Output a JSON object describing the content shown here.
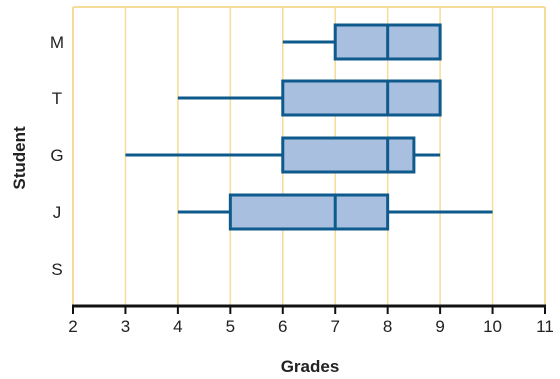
{
  "chart_data": {
    "type": "box",
    "orientation": "horizontal",
    "xlabel": "Grades",
    "ylabel": "Student",
    "xlim": [
      2,
      11
    ],
    "xticks": [
      2,
      3,
      4,
      5,
      6,
      7,
      8,
      9,
      10,
      11
    ],
    "grid": "vertical",
    "categories": [
      "M",
      "T",
      "G",
      "J",
      "S"
    ],
    "boxes": [
      {
        "category": "M",
        "min": 6,
        "q1": 7,
        "median": 8,
        "q3": 9,
        "max": 9
      },
      {
        "category": "T",
        "min": 4,
        "q1": 6,
        "median": 8,
        "q3": 9,
        "max": 9
      },
      {
        "category": "G",
        "min": 3,
        "q1": 6,
        "median": 8,
        "q3": 8.5,
        "max": 9
      },
      {
        "category": "J",
        "min": 4,
        "q1": 5,
        "median": 7,
        "q3": 8,
        "max": 10
      },
      {
        "category": "S"
      }
    ],
    "colors": {
      "box_fill": "#a9bfdf",
      "box_stroke": "#0f5a8c",
      "gridline": "#f5dc98",
      "frame": "#f5dc98",
      "axis": "#111111"
    }
  }
}
